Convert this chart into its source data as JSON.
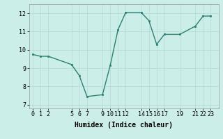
{
  "x": [
    0,
    1,
    2,
    5,
    6,
    7,
    9,
    10,
    11,
    12,
    14,
    15,
    16,
    17,
    19,
    21,
    22,
    23
  ],
  "y": [
    9.75,
    9.65,
    9.65,
    9.2,
    8.6,
    7.45,
    7.55,
    9.15,
    11.1,
    12.05,
    12.05,
    11.6,
    10.3,
    10.85,
    10.85,
    11.3,
    11.85,
    11.85
  ],
  "xticks": [
    0,
    1,
    2,
    5,
    6,
    7,
    9,
    10,
    11,
    12,
    14,
    15,
    16,
    17,
    19,
    21,
    22,
    23
  ],
  "yticks": [
    7,
    8,
    9,
    10,
    11,
    12
  ],
  "xlim": [
    -0.5,
    24.0
  ],
  "ylim": [
    6.8,
    12.5
  ],
  "xlabel": "Humidex (Indice chaleur)",
  "line_color": "#2d7f72",
  "bg_color": "#cceee8",
  "grid_color": "#b8ddd8",
  "xlabel_fontsize": 7,
  "tick_fontsize": 6,
  "linewidth": 1.0,
  "markersize": 2.0
}
